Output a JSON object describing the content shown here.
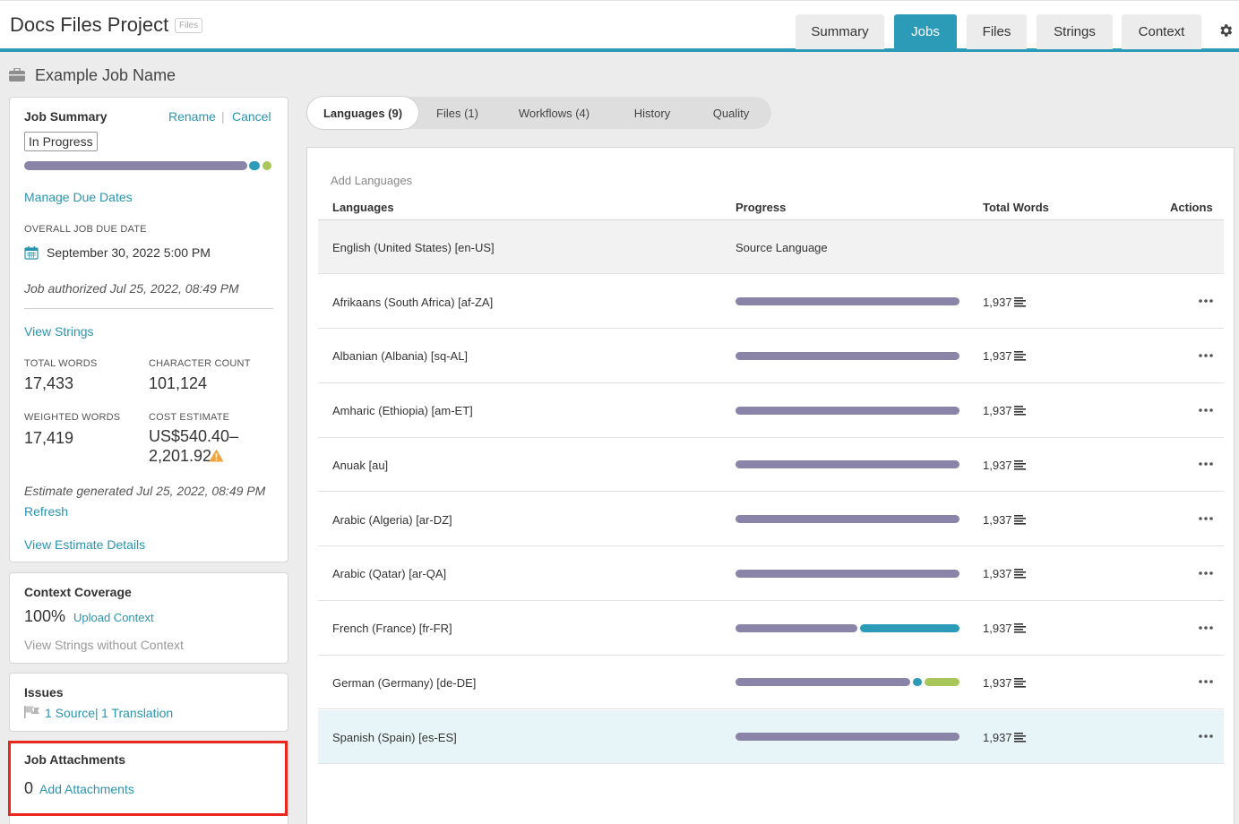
{
  "header": {
    "project_title": "Docs Files Project",
    "badge": "Files",
    "tabs": [
      "Summary",
      "Jobs",
      "Files",
      "Strings",
      "Context"
    ],
    "active_tab": "Jobs",
    "icons": {
      "settings": "gear-icon"
    },
    "accent_color": "#2c9bb8"
  },
  "job": {
    "name": "Example Job Name",
    "icon": "briefcase-icon"
  },
  "summary": {
    "title": "Job Summary",
    "rename": "Rename",
    "separator": "|",
    "cancel": "Cancel",
    "status": "In Progress",
    "manage_due_dates": "Manage Due Dates",
    "due_label": "OVERALL JOB DUE DATE",
    "due_value": "September 30, 2022 5:00 PM",
    "authorized": "Job authorized Jul 25, 2022, 08:49 PM",
    "view_strings": "View Strings",
    "total_words_label": "TOTAL WORDS",
    "total_words": "17,433",
    "char_count_label": "CHARACTER COUNT",
    "char_count": "101,124",
    "weighted_label": "WEIGHTED WORDS",
    "weighted": "17,419",
    "cost_label": "COST ESTIMATE",
    "cost_line1": "US$540.40–",
    "cost_line2": "2,201.92",
    "estimate_generated": "Estimate generated Jul 25, 2022, 08:49 PM",
    "refresh": "Refresh",
    "view_estimate": "View Estimate Details"
  },
  "context": {
    "title": "Context Coverage",
    "percent": "100%",
    "upload": "Upload Context",
    "without": "View Strings without Context"
  },
  "issues": {
    "title": "Issues",
    "source": "1 Source",
    "separator": "|",
    "translation": "1 Translation"
  },
  "attachments": {
    "title": "Job Attachments",
    "count": "0",
    "add": "Add Attachments"
  },
  "subtabs": [
    "Languages (9)",
    "Files (1)",
    "Workflows (4)",
    "History",
    "Quality"
  ],
  "active_subtab": "Languages (9)",
  "languages": {
    "add": "Add Languages",
    "columns": [
      "Languages",
      "Progress",
      "Total Words",
      "Actions"
    ],
    "source": {
      "name": "English (United States) [en-US]",
      "progress_text": "Source Language"
    },
    "rows": [
      {
        "name": "Afrikaans (South Africa) [af-ZA]",
        "words": "1,937",
        "progress": [
          {
            "value": 1.0,
            "color": "#8a84a8"
          }
        ]
      },
      {
        "name": "Albanian (Albania) [sq-AL]",
        "words": "1,937",
        "progress": [
          {
            "value": 1.0,
            "color": "#8a84a8"
          }
        ]
      },
      {
        "name": "Amharic (Ethiopia) [am-ET]",
        "words": "1,937",
        "progress": [
          {
            "value": 1.0,
            "color": "#8a84a8"
          }
        ]
      },
      {
        "name": "Anuak [au]",
        "words": "1,937",
        "progress": [
          {
            "value": 1.0,
            "color": "#8a84a8"
          }
        ]
      },
      {
        "name": "Arabic (Algeria) [ar-DZ]",
        "words": "1,937",
        "progress": [
          {
            "value": 1.0,
            "color": "#8a84a8"
          }
        ]
      },
      {
        "name": "Arabic (Qatar) [ar-QA]",
        "words": "1,937",
        "progress": [
          {
            "value": 1.0,
            "color": "#8a84a8"
          }
        ]
      },
      {
        "name": "French (France) [fr-FR]",
        "words": "1,937",
        "progress": [
          {
            "value": 0.55,
            "color": "#8a84a8"
          },
          {
            "value": 0.45,
            "color": "#2c9bb8"
          }
        ]
      },
      {
        "name": "German (Germany) [de-DE]",
        "words": "1,937",
        "progress": [
          {
            "value": 0.8,
            "color": "#8a84a8"
          },
          {
            "value": 0.04,
            "color": "#2c9bb8"
          },
          {
            "value": 0.16,
            "color": "#a9c65a"
          }
        ]
      },
      {
        "name": "Spanish (Spain) [es-ES]",
        "words": "1,937",
        "progress": [
          {
            "value": 1.0,
            "color": "#8a84a8"
          }
        ],
        "selected": true
      }
    ]
  },
  "job_progress": [
    {
      "value": 0.9,
      "color": "#8a84a8"
    },
    {
      "value": 0.05,
      "color": "#2c9bb8"
    },
    {
      "value": 0.05,
      "color": "#a9c65a"
    }
  ]
}
